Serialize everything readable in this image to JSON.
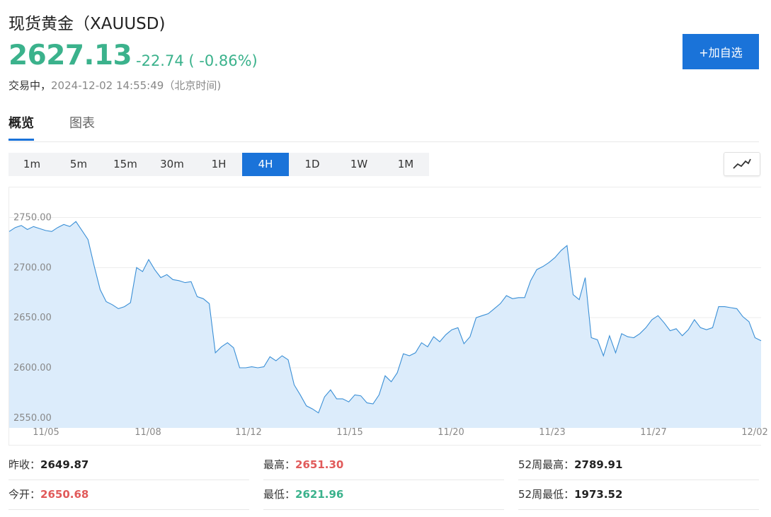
{
  "quote": {
    "title": "现货黄金（XAUUSD)",
    "price": "2627.13",
    "change": "-22.74 ( -0.86%)",
    "status_label": "交易中，",
    "timestamp": "2024-12-02 14:55:49（北京时间)",
    "watch_button": "+加自选"
  },
  "tabs": [
    "概览",
    "图表"
  ],
  "periods": [
    "1m",
    "5m",
    "15m",
    "30m",
    "1H",
    "4H",
    "1D",
    "1W",
    "1M"
  ],
  "active_period": "4H",
  "chart_type_icon": "line-chart-icon",
  "colors": {
    "accent": "#1a73d9",
    "up": "#e15a5a",
    "down": "#3bb28c",
    "line": "#3a8fd6",
    "area": "#dcecfb"
  },
  "chart_data": {
    "type": "area",
    "y_ticks": [
      "2750.00",
      "2700.00",
      "2650.00",
      "2600.00",
      "2550.00"
    ],
    "x_ticks": [
      "11/05",
      "11/08",
      "11/12",
      "11/15",
      "11/20",
      "11/23",
      "11/27",
      "12/02"
    ],
    "ylim": [
      2540,
      2780
    ],
    "grid": true,
    "values": [
      2736,
      2740,
      2742,
      2738,
      2741,
      2739,
      2737,
      2736,
      2740,
      2743,
      2741,
      2746,
      2737,
      2728,
      2702,
      2678,
      2666,
      2663,
      2659,
      2661,
      2665,
      2700,
      2696,
      2708,
      2698,
      2690,
      2693,
      2688,
      2687,
      2685,
      2686,
      2671,
      2669,
      2664,
      2615,
      2621,
      2625,
      2620,
      2600,
      2600,
      2601,
      2600,
      2601,
      2611,
      2607,
      2612,
      2608,
      2583,
      2573,
      2562,
      2559,
      2555,
      2571,
      2578,
      2569,
      2569,
      2566,
      2573,
      2572,
      2565,
      2564,
      2573,
      2592,
      2586,
      2595,
      2614,
      2612,
      2615,
      2625,
      2621,
      2631,
      2626,
      2633,
      2638,
      2640,
      2624,
      2631,
      2650,
      2652,
      2654,
      2659,
      2664,
      2672,
      2669,
      2670,
      2670,
      2687,
      2698,
      2701,
      2705,
      2710,
      2717,
      2722,
      2673,
      2668,
      2690,
      2630,
      2628,
      2612,
      2632,
      2615,
      2634,
      2631,
      2630,
      2634,
      2640,
      2648,
      2652,
      2645,
      2637,
      2639,
      2632,
      2638,
      2648,
      2640,
      2638,
      2640,
      2661,
      2661,
      2660,
      2659,
      2651,
      2646,
      2630,
      2627
    ]
  },
  "stats": [
    {
      "label": "昨收：",
      "value": "2649.87",
      "color": "#222222"
    },
    {
      "label": "最高：",
      "value": "2651.30",
      "color": "#e15a5a"
    },
    {
      "label": "52周最高：",
      "value": "2789.91",
      "color": "#222222"
    },
    {
      "label": "今开：",
      "value": "2650.68",
      "color": "#e15a5a"
    },
    {
      "label": "最低：",
      "value": "2621.96",
      "color": "#3bb28c"
    },
    {
      "label": "52周最低：",
      "value": "1973.52",
      "color": "#222222"
    }
  ]
}
